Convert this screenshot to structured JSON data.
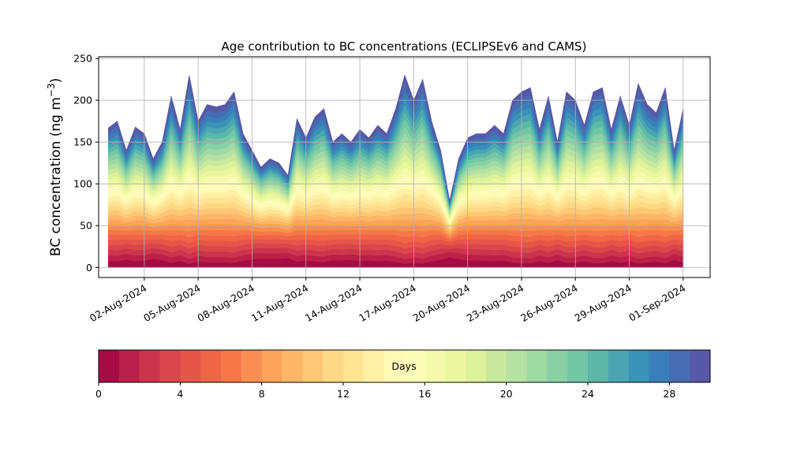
{
  "chart_data": {
    "type": "area",
    "stacked": true,
    "title": "Age contribution to BC concentrations (ECLIPSEv6 and CAMS)",
    "xlabel": "",
    "ylabel_base": "BC concentration (ng m",
    "ylabel_exp": "−3",
    "ylabel_close": ")",
    "ylim": [
      -12,
      252
    ],
    "yticks": [
      0,
      50,
      100,
      150,
      200,
      250
    ],
    "xlim": [
      "2024-07-30T11:00",
      "2024-09-02T12:00"
    ],
    "xticks": [
      "2024-08-02",
      "2024-08-05",
      "2024-08-08",
      "2024-08-11",
      "2024-08-14",
      "2024-08-17",
      "2024-08-20",
      "2024-08-23",
      "2024-08-26",
      "2024-08-29",
      "2024-09-01"
    ],
    "xtick_labels": [
      "02-Aug-2024",
      "05-Aug-2024",
      "08-Aug-2024",
      "11-Aug-2024",
      "14-Aug-2024",
      "17-Aug-2024",
      "20-Aug-2024",
      "23-Aug-2024",
      "26-Aug-2024",
      "29-Aug-2024",
      "01-Sep-2024"
    ],
    "grid": true,
    "colormap": "Spectral",
    "age_bins_days": 30,
    "total": {
      "dates": [
        "2024-07-31T00:00",
        "2024-07-31T12:00",
        "2024-08-01T00:00",
        "2024-08-01T12:00",
        "2024-08-02T00:00",
        "2024-08-02T12:00",
        "2024-08-03T00:00",
        "2024-08-03T12:00",
        "2024-08-04T00:00",
        "2024-08-04T12:00",
        "2024-08-05T00:00",
        "2024-08-05T12:00",
        "2024-08-06T00:00",
        "2024-08-06T12:00",
        "2024-08-07T00:00",
        "2024-08-07T12:00",
        "2024-08-08T00:00",
        "2024-08-08T12:00",
        "2024-08-09T00:00",
        "2024-08-09T12:00",
        "2024-08-10T00:00",
        "2024-08-10T12:00",
        "2024-08-11T00:00",
        "2024-08-11T12:00",
        "2024-08-12T00:00",
        "2024-08-12T12:00",
        "2024-08-13T00:00",
        "2024-08-13T12:00",
        "2024-08-14T00:00",
        "2024-08-14T12:00",
        "2024-08-15T00:00",
        "2024-08-15T12:00",
        "2024-08-16T00:00",
        "2024-08-16T12:00",
        "2024-08-17T00:00",
        "2024-08-17T12:00",
        "2024-08-18T00:00",
        "2024-08-18T12:00",
        "2024-08-19T00:00",
        "2024-08-19T12:00",
        "2024-08-20T00:00",
        "2024-08-20T12:00",
        "2024-08-21T00:00",
        "2024-08-21T12:00",
        "2024-08-22T00:00",
        "2024-08-22T12:00",
        "2024-08-23T00:00",
        "2024-08-23T12:00",
        "2024-08-24T00:00",
        "2024-08-24T12:00",
        "2024-08-25T00:00",
        "2024-08-25T12:00",
        "2024-08-26T00:00",
        "2024-08-26T12:00",
        "2024-08-27T00:00",
        "2024-08-27T12:00",
        "2024-08-28T00:00",
        "2024-08-28T12:00",
        "2024-08-29T00:00",
        "2024-08-29T12:00",
        "2024-08-30T00:00",
        "2024-08-30T12:00",
        "2024-08-31T00:00",
        "2024-08-31T12:00",
        "2024-09-01T00:00"
      ],
      "values": [
        167,
        175,
        140,
        168,
        160,
        130,
        150,
        205,
        165,
        230,
        175,
        195,
        192,
        195,
        210,
        160,
        140,
        120,
        130,
        125,
        110,
        178,
        155,
        180,
        190,
        150,
        160,
        150,
        165,
        155,
        170,
        160,
        190,
        230,
        200,
        225,
        175,
        140,
        80,
        130,
        155,
        160,
        160,
        170,
        160,
        200,
        210,
        215,
        165,
        205,
        150,
        210,
        200,
        170,
        210,
        215,
        165,
        205,
        170,
        220,
        195,
        185,
        215,
        140,
        190
      ]
    }
  },
  "colorbar": {
    "label": "Days",
    "range": [
      0,
      30
    ],
    "ticks": [
      0,
      4,
      8,
      12,
      16,
      20,
      24,
      28
    ]
  }
}
